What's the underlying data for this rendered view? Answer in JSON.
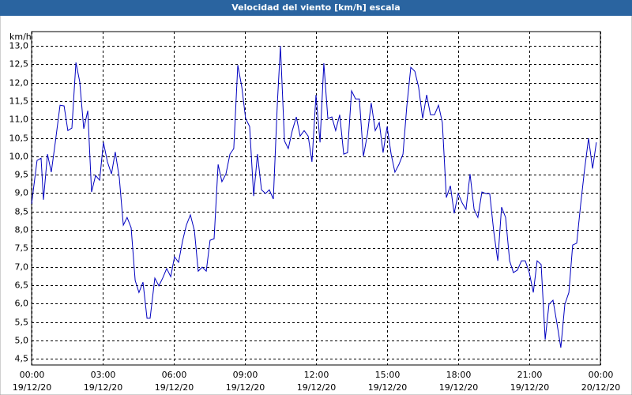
{
  "chart_data": {
    "type": "line",
    "title": "Velocidad del viento [km/h] escala",
    "y_label": "km/h",
    "grid": true,
    "xlim": [
      0,
      24
    ],
    "xticks": [
      {
        "value": 0,
        "label": "00:00"
      },
      {
        "value": 3,
        "label": "03:00"
      },
      {
        "value": 6,
        "label": "06:00"
      },
      {
        "value": 9,
        "label": "09:00"
      },
      {
        "value": 12,
        "label": "12:00"
      },
      {
        "value": 15,
        "label": "15:00"
      },
      {
        "value": 18,
        "label": "18:00"
      },
      {
        "value": 21,
        "label": "21:00"
      },
      {
        "value": 24,
        "label": "00:00"
      }
    ],
    "xtick_dates": [
      "19/12/20",
      "19/12/20",
      "19/12/20",
      "19/12/20",
      "19/12/20",
      "19/12/20",
      "19/12/20",
      "19/12/20",
      "20/12/20"
    ],
    "ylim": [
      4.33,
      13.39
    ],
    "yticks": [
      {
        "value": 4.5,
        "label": "4,5"
      },
      {
        "value": 5,
        "label": "5,0"
      },
      {
        "value": 5.5,
        "label": "5,5"
      },
      {
        "value": 6,
        "label": "6,0"
      },
      {
        "value": 6.5,
        "label": "6,5"
      },
      {
        "value": 7,
        "label": "7,0"
      },
      {
        "value": 7.5,
        "label": "7,5"
      },
      {
        "value": 8,
        "label": "8,0"
      },
      {
        "value": 8.5,
        "label": "8,5"
      },
      {
        "value": 9,
        "label": "9,0"
      },
      {
        "value": 9.5,
        "label": "9,5"
      },
      {
        "value": 10,
        "label": "10,0"
      },
      {
        "value": 10.5,
        "label": "10,5"
      },
      {
        "value": 11,
        "label": "11,0"
      },
      {
        "value": 11.5,
        "label": "11,5"
      },
      {
        "value": 12,
        "label": "12,0"
      },
      {
        "value": 12.5,
        "label": "12,5"
      },
      {
        "value": 13,
        "label": "13,0"
      }
    ],
    "x": [
      0,
      0.23,
      0.4,
      0.5,
      0.67,
      0.83,
      1,
      1.2,
      1.37,
      1.53,
      1.7,
      1.87,
      2.03,
      2.2,
      2.37,
      2.53,
      2.7,
      2.87,
      3.03,
      3.2,
      3.37,
      3.53,
      3.7,
      3.87,
      4.03,
      4.2,
      4.37,
      4.53,
      4.7,
      4.87,
      5,
      5.2,
      5.37,
      5.53,
      5.7,
      5.87,
      6.03,
      6.2,
      6.37,
      6.53,
      6.7,
      6.87,
      7.03,
      7.2,
      7.37,
      7.53,
      7.7,
      7.87,
      8.03,
      8.2,
      8.37,
      8.53,
      8.7,
      8.87,
      9.03,
      9.2,
      9.37,
      9.53,
      9.7,
      9.87,
      10.03,
      10.2,
      10.37,
      10.5,
      10.67,
      10.83,
      11,
      11.17,
      11.33,
      11.5,
      11.67,
      11.83,
      12,
      12.17,
      12.33,
      12.5,
      12.67,
      12.83,
      13,
      13.17,
      13.33,
      13.5,
      13.67,
      13.83,
      14,
      14.17,
      14.33,
      14.5,
      14.67,
      14.83,
      15,
      15.17,
      15.33,
      15.5,
      15.67,
      15.83,
      16,
      16.17,
      16.33,
      16.5,
      16.67,
      16.83,
      17,
      17.17,
      17.33,
      17.5,
      17.67,
      17.83,
      18,
      18.17,
      18.33,
      18.5,
      18.67,
      18.83,
      19,
      19.17,
      19.33,
      19.5,
      19.67,
      19.83,
      20,
      20.17,
      20.33,
      20.5,
      20.67,
      20.83,
      21,
      21.17,
      21.33,
      21.5,
      21.67,
      21.83,
      22,
      22.17,
      22.33,
      22.5,
      22.67,
      22.83,
      23,
      23.17,
      23.33,
      23.5,
      23.67,
      23.83
    ],
    "series": [
      {
        "color": "#0000c0",
        "values": [
          8.71,
          9.89,
          9.95,
          8.82,
          10.06,
          9.57,
          10.38,
          11.39,
          11.37,
          10.7,
          10.77,
          12.55,
          12.03,
          10.75,
          11.24,
          9.03,
          9.48,
          9.35,
          10.38,
          9.85,
          9.52,
          10.12,
          9.42,
          8.13,
          8.34,
          8.06,
          6.63,
          6.3,
          6.58,
          5.6,
          5.6,
          6.69,
          6.48,
          6.69,
          6.95,
          6.73,
          7.27,
          7.12,
          7.7,
          8.13,
          8.41,
          7.98,
          6.88,
          6.99,
          6.88,
          7.72,
          7.76,
          9.78,
          9.31,
          9.52,
          10.06,
          10.21,
          12.48,
          11.88,
          11.03,
          10.81,
          8.92,
          10.06,
          9.09,
          8.99,
          9.09,
          8.84,
          11.45,
          13.0,
          10.42,
          10.21,
          10.7,
          11.07,
          10.55,
          10.7,
          10.55,
          9.85,
          11.67,
          10.38,
          12.53,
          11.03,
          11.07,
          10.7,
          11.13,
          10.06,
          10.1,
          11.78,
          11.56,
          11.56,
          10.0,
          10.6,
          11.45,
          10.7,
          10.92,
          10.1,
          10.81,
          10.06,
          9.57,
          9.78,
          10.06,
          11.35,
          12.42,
          12.31,
          11.88,
          11.03,
          11.67,
          11.13,
          11.13,
          11.39,
          10.92,
          8.88,
          9.2,
          8.45,
          8.99,
          8.73,
          8.56,
          9.52,
          8.56,
          8.34,
          9.03,
          8.99,
          8.99,
          7.96,
          7.16,
          8.62,
          8.34,
          7.16,
          6.84,
          6.91,
          7.16,
          7.16,
          6.84,
          6.3,
          7.16,
          7.06,
          5.02,
          5.98,
          6.09,
          5.45,
          4.8,
          5.98,
          6.3,
          7.59,
          7.64,
          8.71,
          9.63,
          10.49,
          9.67,
          10.38
        ]
      }
    ]
  }
}
